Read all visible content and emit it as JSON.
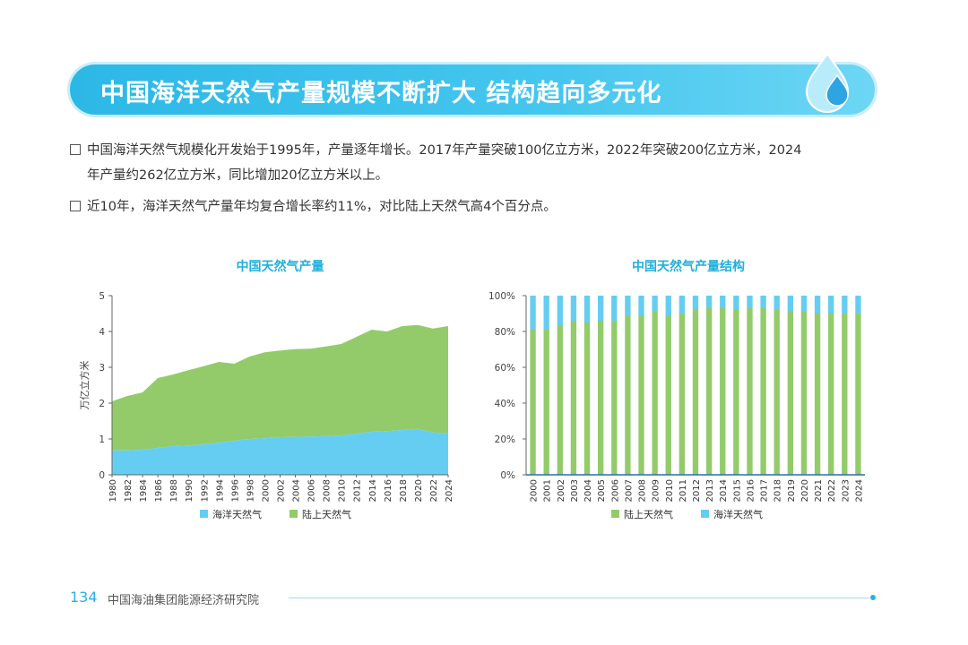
{
  "header": {
    "title": "中国海洋天然气产量规模不断扩大  结构趋向多元化"
  },
  "bullets": [
    {
      "line1": "中国海洋天然气规模化开发始于1995年，产量逐年增长。2017年产量突破100亿立方米，2022年突破200亿立方米，2024",
      "line2": "年产量约262亿立方米，同比增加20亿立方米以上。"
    },
    {
      "line1": "近10年，海洋天然气产量年均复合增长率约11%，对比陆上天然气高4个百分点。"
    }
  ],
  "colors": {
    "offshore": "#66cdf2",
    "onshore": "#93cb6a",
    "accent": "#2cb8e6",
    "title": "#1fb0dc"
  },
  "chart_data": [
    {
      "type": "area",
      "title": "中国天然气产量",
      "ylabel": "万亿立方米",
      "ylim": [
        0,
        5
      ],
      "yticks": [
        "0",
        "1",
        "2",
        "3",
        "4",
        "5"
      ],
      "xtick_labels": [
        "1980",
        "1982",
        "1984",
        "1986",
        "1988",
        "1990",
        "1992",
        "1994",
        "1996",
        "1998",
        "2000",
        "2002",
        "2004",
        "2006",
        "2008",
        "2010",
        "2012",
        "2014",
        "2016",
        "2018",
        "2020",
        "2022",
        "2024"
      ],
      "x": [
        1980,
        1982,
        1984,
        1986,
        1988,
        1990,
        1992,
        1994,
        1996,
        1998,
        2000,
        2002,
        2004,
        2006,
        2008,
        2010,
        2012,
        2014,
        2016,
        2018,
        2020,
        2022,
        2024
      ],
      "series": [
        {
          "name": "海洋天然气",
          "values": [
            0.68,
            0.68,
            0.7,
            0.75,
            0.8,
            0.82,
            0.85,
            0.9,
            0.95,
            1.0,
            1.02,
            1.05,
            1.06,
            1.07,
            1.08,
            1.1,
            1.15,
            1.2,
            1.22,
            1.25,
            1.28,
            1.18,
            1.15
          ]
        },
        {
          "name": "陆上天然气",
          "values": [
            1.37,
            1.52,
            1.6,
            1.95,
            2.0,
            2.1,
            2.18,
            2.25,
            2.15,
            2.3,
            2.4,
            2.42,
            2.45,
            2.45,
            2.5,
            2.55,
            2.7,
            2.85,
            2.78,
            2.9,
            2.9,
            2.9,
            3.0
          ]
        }
      ],
      "legend": [
        "海洋天然气",
        "陆上天然气"
      ]
    },
    {
      "type": "bar",
      "stacked": true,
      "title": "中国天然气产量结构",
      "ylim": [
        0,
        100
      ],
      "yticks": [
        "0%",
        "20%",
        "40%",
        "60%",
        "80%",
        "100%"
      ],
      "categories": [
        "2000",
        "2001",
        "2002",
        "2003",
        "2004",
        "2005",
        "2006",
        "2007",
        "2008",
        "2009",
        "2010",
        "2011",
        "2012",
        "2013",
        "2014",
        "2015",
        "2016",
        "2017",
        "2018",
        "2019",
        "2020",
        "2021",
        "2022",
        "2023",
        "2024"
      ],
      "series": [
        {
          "name": "陆上天然气",
          "values": [
            81,
            81,
            83,
            86,
            85,
            86,
            86,
            89,
            89,
            91,
            89,
            90,
            92,
            93,
            93,
            92,
            93,
            93,
            92,
            91,
            91,
            90,
            90,
            90,
            90
          ]
        },
        {
          "name": "海洋天然气",
          "values": [
            19,
            19,
            17,
            14,
            15,
            14,
            14,
            11,
            11,
            9,
            11,
            10,
            8,
            7,
            7,
            8,
            7,
            7,
            8,
            9,
            9,
            10,
            10,
            10,
            10
          ]
        }
      ],
      "legend": [
        "陆上天然气",
        "海洋天然气"
      ]
    }
  ],
  "footer": {
    "page": "134",
    "org": "中国海油集团能源经济研究院"
  }
}
